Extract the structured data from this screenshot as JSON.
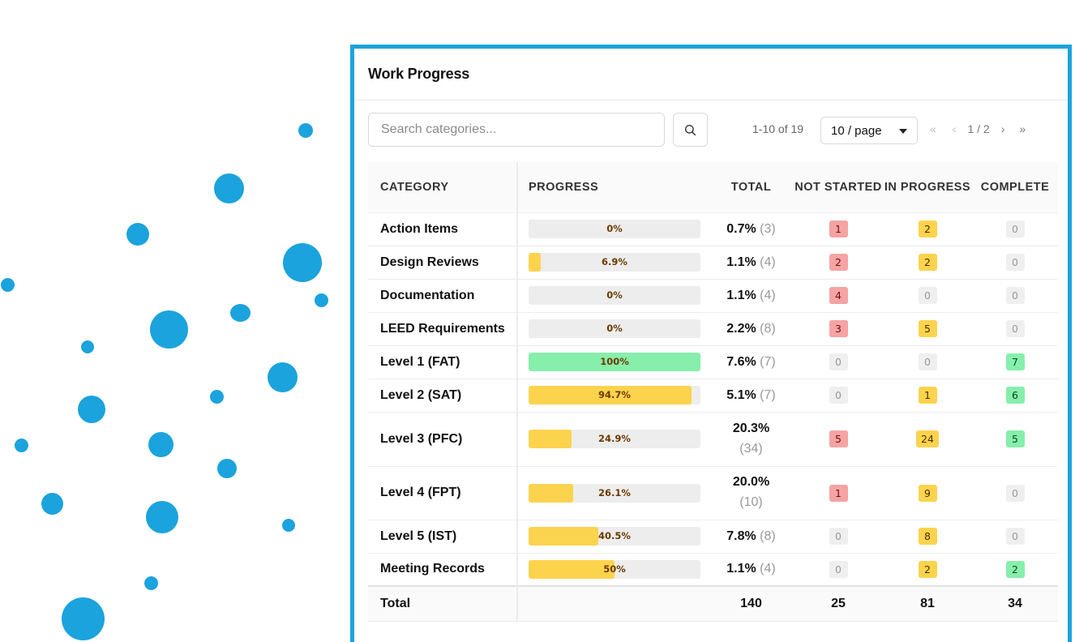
{
  "panel": {
    "title": "Work Progress"
  },
  "search": {
    "placeholder": "Search categories...",
    "value": ""
  },
  "pagination": {
    "range": "1-10 of 19",
    "page_size": "10 / page",
    "first": "«",
    "prev": "‹",
    "current": "1 / 2",
    "next": "›",
    "last": "»"
  },
  "columns": {
    "category": "CATEGORY",
    "progress": "PROGRESS",
    "total": "TOTAL",
    "not_started": "NOT STARTED",
    "in_progress": "IN PROGRESS",
    "complete": "COMPLETE"
  },
  "rows": [
    {
      "category": "Action Items",
      "progress": 0,
      "progress_label": "0%",
      "total_pct": "0.7%",
      "total_count": "(3)",
      "not_started": "1",
      "in_progress": "2",
      "complete": "0"
    },
    {
      "category": "Design Reviews",
      "progress": 6.9,
      "progress_label": "6.9%",
      "total_pct": "1.1%",
      "total_count": "(4)",
      "not_started": "2",
      "in_progress": "2",
      "complete": "0"
    },
    {
      "category": "Documentation",
      "progress": 0,
      "progress_label": "0%",
      "total_pct": "1.1%",
      "total_count": "(4)",
      "not_started": "4",
      "in_progress": "0",
      "complete": "0"
    },
    {
      "category": "LEED Requirements",
      "progress": 0,
      "progress_label": "0%",
      "total_pct": "2.2%",
      "total_count": "(8)",
      "not_started": "3",
      "in_progress": "5",
      "complete": "0"
    },
    {
      "category": "Level 1 (FAT)",
      "progress": 100,
      "progress_label": "100%",
      "total_pct": "7.6%",
      "total_count": "(7)",
      "not_started": "0",
      "in_progress": "0",
      "complete": "7"
    },
    {
      "category": "Level 2 (SAT)",
      "progress": 94.7,
      "progress_label": "94.7%",
      "total_pct": "5.1%",
      "total_count": "(7)",
      "not_started": "0",
      "in_progress": "1",
      "complete": "6"
    },
    {
      "category": "Level 3 (PFC)",
      "progress": 24.9,
      "progress_label": "24.9%",
      "total_pct": "20.3%",
      "total_count": "(34)",
      "not_started": "5",
      "in_progress": "24",
      "complete": "5"
    },
    {
      "category": "Level 4 (FPT)",
      "progress": 26.1,
      "progress_label": "26.1%",
      "total_pct": "20.0%",
      "total_count": "(10)",
      "not_started": "1",
      "in_progress": "9",
      "complete": "0"
    },
    {
      "category": "Level 5 (IST)",
      "progress": 40.5,
      "progress_label": "40.5%",
      "total_pct": "7.8%",
      "total_count": "(8)",
      "not_started": "0",
      "in_progress": "8",
      "complete": "0"
    },
    {
      "category": "Meeting Records",
      "progress": 50,
      "progress_label": "50%",
      "total_pct": "1.1%",
      "total_count": "(4)",
      "not_started": "0",
      "in_progress": "2",
      "complete": "2"
    }
  ],
  "totals": {
    "label": "Total",
    "total": "140",
    "not_started": "25",
    "in_progress": "81",
    "complete": "34"
  },
  "colors": {
    "accent": "#1ba3dd",
    "progress_complete": "#86efac",
    "progress_partial": "#fcd34d",
    "badge_not_started": "#f5a3a3",
    "badge_in_progress": "#fcd34d",
    "badge_complete": "#86efac",
    "badge_zero": "#efefef"
  },
  "icons": {
    "search_button": "search-icon",
    "page_size_caret": "caret-down-icon"
  }
}
